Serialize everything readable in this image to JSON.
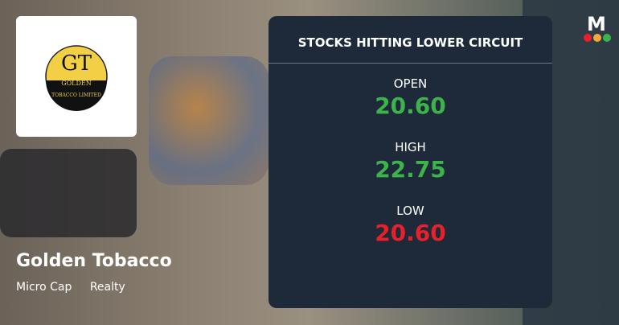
{
  "company": {
    "name": "Golden Tobacco",
    "tags": [
      "Micro Cap",
      "Realty"
    ],
    "logo_text": [
      "GT",
      "GOLDEN",
      "TOBACCO LIMITED"
    ]
  },
  "card": {
    "title": "STOCKS HITTING LOWER CIRCUIT",
    "items": [
      {
        "label": "OPEN",
        "value": "20.60",
        "color": "#3cb44a"
      },
      {
        "label": "HIGH",
        "value": "22.75",
        "color": "#3cb44a"
      },
      {
        "label": "LOW",
        "value": "20.60",
        "color": "#e8202a"
      }
    ]
  },
  "brand": {
    "letter": "M",
    "dots": [
      "#e8202a",
      "#f4a93c",
      "#3cb44a"
    ]
  }
}
